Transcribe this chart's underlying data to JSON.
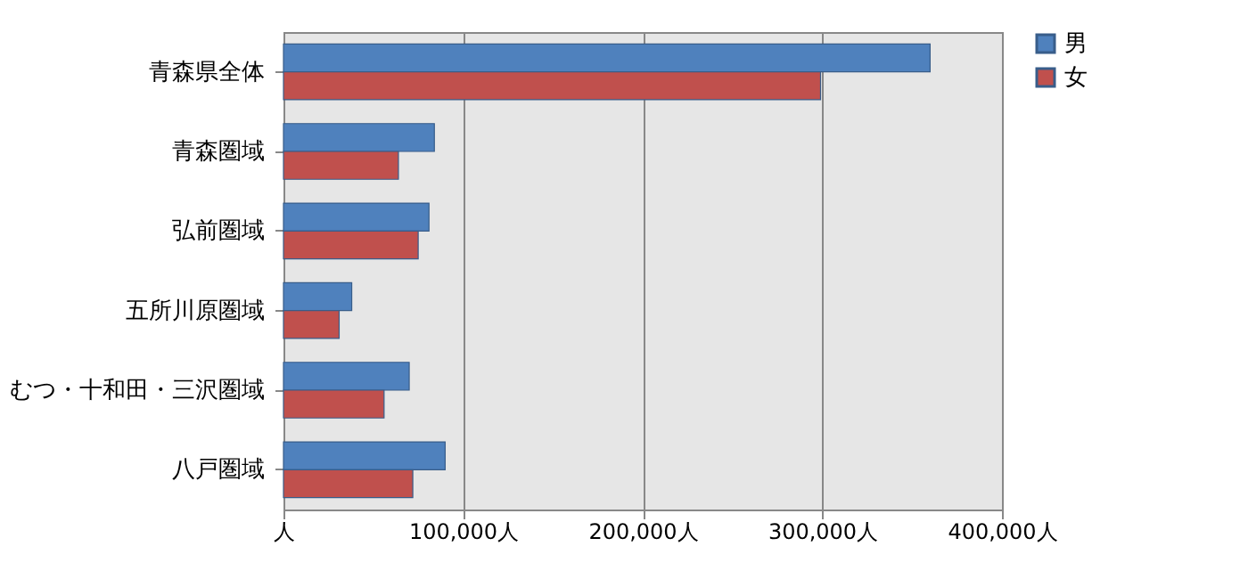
{
  "chart_data": {
    "type": "bar",
    "orientation": "horizontal",
    "categories": [
      "青森県全体",
      "青森圏域",
      "弘前圏域",
      "五所川原圏域",
      "むつ・十和田・三沢圏域",
      "八戸圏域"
    ],
    "series": [
      {
        "name": "男",
        "color": "#4f81bd",
        "values": [
          360000,
          84000,
          81000,
          38000,
          70000,
          90000
        ]
      },
      {
        "name": "女",
        "color": "#c0504d",
        "values": [
          299000,
          64000,
          75000,
          31000,
          56000,
          72000
        ]
      }
    ],
    "xlim": [
      0,
      400000
    ],
    "xticks": [
      {
        "value": 0,
        "label": "人"
      },
      {
        "value": 100000,
        "label": "100,000人"
      },
      {
        "value": 200000,
        "label": "200,000人"
      },
      {
        "value": 300000,
        "label": "300,000人"
      },
      {
        "value": 400000,
        "label": "400,000人"
      }
    ],
    "grid": "x",
    "legend": "right"
  }
}
